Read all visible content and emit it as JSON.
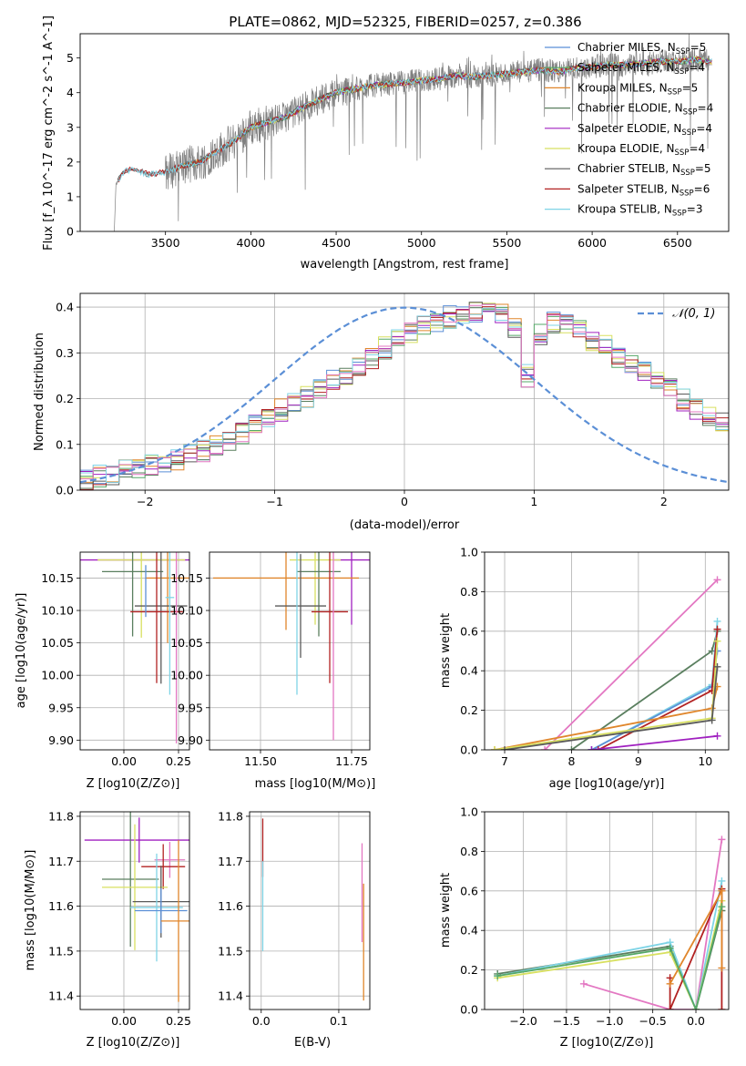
{
  "figure": {
    "title": "PLATE=0862, MJD=52325, FIBERID=0257, z=0.386"
  },
  "colors": {
    "Chabrier MILES": "#5b8fd6",
    "Salpeter MILES": "#55a868",
    "Kroupa MILES": "#e0862b",
    "Chabrier ELODIE": "#5a7f5f",
    "Salpeter ELODIE": "#a020c0",
    "Kroupa ELODIE": "#d8e060",
    "Chabrier STELIB": "#5a5a5a",
    "Salpeter STELIB": "#b22222",
    "Kroupa STELIB": "#7fd4e6",
    "pink": "#e377c2",
    "gauss": "#5b8fd6",
    "grid": "#b0b0b0",
    "spectrum": "#808080"
  },
  "chart_data": [
    {
      "type": "line",
      "name": "spectrum",
      "xlabel": "wavelength [Angstrom, rest frame]",
      "ylabel": "Flux [f_λ 10^-17 erg cm^-2 s^-1 A^-1]",
      "xlim": [
        3000,
        6800
      ],
      "ylim": [
        0,
        5.7
      ],
      "xticks": [
        3500,
        4000,
        4500,
        5000,
        5500,
        6000,
        6500
      ],
      "yticks": [
        0,
        1,
        2,
        3,
        4,
        5
      ],
      "grid": false,
      "legend_position": "right",
      "legend": [
        {
          "label": "Chabrier MILES, N",
          "sub": "SSP",
          "tail": "=5"
        },
        {
          "label": "Salpeter MILES, N",
          "sub": "SSP",
          "tail": "=4"
        },
        {
          "label": "Kroupa MILES, N",
          "sub": "SSP",
          "tail": "=5"
        },
        {
          "label": "Chabrier ELODIE, N",
          "sub": "SSP",
          "tail": "=4"
        },
        {
          "label": "Salpeter ELODIE, N",
          "sub": "SSP",
          "tail": "=4"
        },
        {
          "label": "Kroupa ELODIE, N",
          "sub": "SSP",
          "tail": "=4"
        },
        {
          "label": "Chabrier STELIB, N",
          "sub": "SSP",
          "tail": "=5"
        },
        {
          "label": "Salpeter STELIB, N",
          "sub": "SSP",
          "tail": "=6"
        },
        {
          "label": "Kroupa STELIB, N",
          "sub": "SSP",
          "tail": "=3"
        }
      ],
      "continuum": {
        "x": [
          3200,
          3250,
          3300,
          3400,
          3500,
          3600,
          3700,
          3800,
          3900,
          4000,
          4100,
          4200,
          4300,
          4400,
          4500,
          4600,
          4700,
          4800,
          4900,
          5000,
          5100,
          5200,
          5300,
          5400,
          5500,
          5600,
          5700,
          5800,
          5900,
          6000,
          6100,
          6200,
          6300,
          6400,
          6500,
          6600,
          6700
        ],
        "y": [
          1.25,
          1.7,
          1.8,
          1.65,
          1.7,
          1.9,
          2.0,
          2.3,
          2.6,
          3.0,
          3.15,
          3.3,
          3.55,
          3.8,
          4.0,
          4.1,
          4.2,
          4.25,
          4.3,
          4.35,
          4.4,
          4.5,
          4.45,
          4.5,
          4.55,
          4.6,
          4.65,
          4.6,
          4.7,
          4.75,
          4.8,
          4.8,
          4.85,
          4.9,
          4.9,
          4.95,
          4.9
        ]
      }
    },
    {
      "type": "line",
      "name": "residual-distribution",
      "xlabel": "(data-model)/error",
      "ylabel": "Normed distribution",
      "xlim": [
        -2.5,
        2.5
      ],
      "ylim": [
        0,
        0.43
      ],
      "xticks": [
        -2,
        -1,
        0,
        1,
        2
      ],
      "yticks": [
        0.0,
        0.1,
        0.2,
        0.3,
        0.4
      ],
      "grid": true,
      "legend": [
        "𝒩(0, 1)"
      ],
      "legend_position": "top-right",
      "bin_edges_start": -2.5,
      "bin_width": 0.1,
      "series_base": [
        0.025,
        0.03,
        0.035,
        0.042,
        0.05,
        0.055,
        0.06,
        0.067,
        0.075,
        0.085,
        0.098,
        0.108,
        0.125,
        0.14,
        0.158,
        0.175,
        0.19,
        0.205,
        0.222,
        0.238,
        0.252,
        0.272,
        0.288,
        0.31,
        0.33,
        0.345,
        0.358,
        0.368,
        0.378,
        0.385,
        0.392,
        0.395,
        0.385,
        0.35,
        0.25,
        0.34,
        0.365,
        0.36,
        0.352,
        0.33,
        0.318,
        0.292,
        0.28,
        0.258,
        0.24,
        0.222,
        0.198,
        0.18,
        0.162,
        0.145,
        0.127
      ],
      "gaussian": {
        "mu": 0,
        "sigma": 1,
        "label": "𝒩(0, 1)"
      }
    },
    {
      "type": "scatter",
      "name": "age-vs-Z",
      "xlabel": "Z [log10(Z/Z⊙)]",
      "ylabel": "age [log10(age/yr)]",
      "xlim": [
        -0.2,
        0.3
      ],
      "ylim": [
        9.885,
        10.19
      ],
      "xticks": [
        0.0,
        0.25
      ],
      "yticks": [
        9.9,
        9.95,
        10.0,
        10.05,
        10.1,
        10.15
      ],
      "grid": true,
      "points": [
        {
          "series": "Salpeter ELODIE",
          "x": 0.05,
          "y": 10.178,
          "xerr": 0.25,
          "yerr": 0.0
        },
        {
          "series": "Kroupa ELODIE",
          "x": 0.08,
          "y": 10.178,
          "xerr": 0.2,
          "yerr": 0.12
        },
        {
          "series": "Chabrier ELODIE",
          "x": 0.04,
          "y": 10.16,
          "xerr": 0.14,
          "yerr": 0.1
        },
        {
          "series": "Kroupa MILES",
          "x": 0.2,
          "y": 10.15,
          "xerr": 0.1,
          "yerr": 0.1
        },
        {
          "series": "Chabrier STELIB",
          "x": 0.17,
          "y": 10.107,
          "xerr": 0.12,
          "yerr": 0.12
        },
        {
          "series": "Salpeter STELIB",
          "x": 0.15,
          "y": 10.098,
          "xerr": 0.12,
          "yerr": 0.11
        },
        {
          "series": "Kroupa STELIB",
          "x": 0.21,
          "y": 10.12,
          "xerr": 0.02,
          "yerr": 0.15
        },
        {
          "series": "pink",
          "x": 0.24,
          "y": 10.05,
          "xerr": 0.0,
          "yerr": 0.155
        },
        {
          "series": "Chabrier MILES",
          "x": 0.1,
          "y": 10.13,
          "xerr": 0.0,
          "yerr": 0.04
        }
      ]
    },
    {
      "type": "scatter",
      "name": "age-vs-mass",
      "xlabel": "mass [log10(M/M⊙)]",
      "ylabel": "",
      "xlim": [
        11.36,
        11.8
      ],
      "ylim": [
        9.885,
        10.19
      ],
      "xticks": [
        11.5,
        11.75
      ],
      "yticks": [
        9.9,
        9.95,
        10.0,
        10.05,
        10.1,
        10.15
      ],
      "grid": true,
      "points": [
        {
          "series": "Salpeter ELODIE",
          "x": 11.75,
          "y": 10.178,
          "xerr": 0.05,
          "yerr": 0.1
        },
        {
          "series": "Kroupa ELODIE",
          "x": 11.65,
          "y": 10.178,
          "xerr": 0.07,
          "yerr": 0.1
        },
        {
          "series": "Chabrier ELODIE",
          "x": 11.66,
          "y": 10.16,
          "xerr": 0.06,
          "yerr": 0.1
        },
        {
          "series": "Kroupa MILES",
          "x": 11.57,
          "y": 10.15,
          "xerr": 0.2,
          "yerr": 0.08
        },
        {
          "series": "Chabrier STELIB",
          "x": 11.61,
          "y": 10.107,
          "xerr": 0.07,
          "yerr": 0.08
        },
        {
          "series": "Salpeter STELIB",
          "x": 11.69,
          "y": 10.098,
          "xerr": 0.05,
          "yerr": 0.11
        },
        {
          "series": "Kroupa STELIB",
          "x": 11.6,
          "y": 10.12,
          "xerr": 0.0,
          "yerr": 0.15
        },
        {
          "series": "pink",
          "x": 11.7,
          "y": 10.05,
          "xerr": 0.0,
          "yerr": 0.15
        }
      ]
    },
    {
      "type": "line",
      "name": "weight-vs-age",
      "xlabel": "age [log10(age/yr)]",
      "ylabel": "mass weight",
      "xlim": [
        6.7,
        10.35
      ],
      "ylim": [
        0,
        1
      ],
      "xticks": [
        7,
        8,
        9,
        10
      ],
      "yticks": [
        0.0,
        0.2,
        0.4,
        0.6,
        0.8,
        1.0
      ],
      "grid": true,
      "series": [
        {
          "name": "pink",
          "x": [
            7.6,
            10.18
          ],
          "y": [
            0.0,
            0.86
          ]
        },
        {
          "name": "Chabrier ELODIE",
          "x": [
            8.0,
            10.1,
            10.18
          ],
          "y": [
            0.0,
            0.5,
            0.6
          ]
        },
        {
          "name": "Kroupa STELIB",
          "x": [
            8.3,
            10.1,
            10.18
          ],
          "y": [
            0.0,
            0.33,
            0.65
          ]
        },
        {
          "name": "Chabrier MILES",
          "x": [
            8.3,
            10.1,
            10.18
          ],
          "y": [
            0.0,
            0.32,
            0.5
          ]
        },
        {
          "name": "Salpeter STELIB",
          "x": [
            8.4,
            10.1,
            10.18
          ],
          "y": [
            0.0,
            0.3,
            0.61
          ]
        },
        {
          "name": "Kroupa MILES",
          "x": [
            6.85,
            10.1,
            10.18
          ],
          "y": [
            0.0,
            0.21,
            0.32
          ]
        },
        {
          "name": "Kroupa ELODIE",
          "x": [
            6.85,
            10.1,
            10.18
          ],
          "y": [
            0.0,
            0.16,
            0.55
          ]
        },
        {
          "name": "Chabrier STELIB",
          "x": [
            7.0,
            10.1,
            10.18
          ],
          "y": [
            0.0,
            0.15,
            0.42
          ]
        },
        {
          "name": "Salpeter ELODIE",
          "x": [
            8.3,
            10.18
          ],
          "y": [
            0.0,
            0.07
          ]
        }
      ]
    },
    {
      "type": "scatter",
      "name": "mass-vs-Z",
      "xlabel": "Z [log10(Z/Z⊙)]",
      "ylabel": "mass [log10(M/M⊙)]",
      "xlim": [
        -0.2,
        0.3
      ],
      "ylim": [
        11.37,
        11.81
      ],
      "xticks": [
        0.0,
        0.25
      ],
      "yticks": [
        11.4,
        11.5,
        11.6,
        11.7,
        11.8
      ],
      "grid": true,
      "points": [
        {
          "series": "Salpeter ELODIE",
          "x": 0.07,
          "y": 11.747,
          "xerr": 0.25,
          "yerr": 0.05
        },
        {
          "series": "pink",
          "x": 0.21,
          "y": 11.703,
          "xerr": 0.07,
          "yerr": 0.04
        },
        {
          "series": "Salpeter STELIB",
          "x": 0.18,
          "y": 11.688,
          "xerr": 0.1,
          "yerr": 0.05
        },
        {
          "series": "Chabrier ELODIE",
          "x": 0.03,
          "y": 11.66,
          "xerr": 0.13,
          "yerr": 0.15
        },
        {
          "series": "Kroupa ELODIE",
          "x": 0.05,
          "y": 11.642,
          "xerr": 0.15,
          "yerr": 0.14
        },
        {
          "series": "Chabrier STELIB",
          "x": 0.17,
          "y": 11.61,
          "xerr": 0.13,
          "yerr": 0.08
        },
        {
          "series": "Kroupa STELIB",
          "x": 0.15,
          "y": 11.597,
          "xerr": 0.12,
          "yerr": 0.12
        },
        {
          "series": "Chabrier MILES",
          "x": 0.17,
          "y": 11.59,
          "xerr": 0.12,
          "yerr": 0.05
        },
        {
          "series": "Kroupa MILES",
          "x": 0.25,
          "y": 11.567,
          "xerr": 0.08,
          "yerr": 0.18
        }
      ]
    },
    {
      "type": "scatter",
      "name": "mass-vs-EBV",
      "xlabel": "E(B-V)",
      "ylabel": "",
      "xlim": [
        -0.015,
        0.14
      ],
      "ylim": [
        11.37,
        11.81
      ],
      "xticks": [
        0.0,
        0.1
      ],
      "yticks": [
        11.4,
        11.5,
        11.6,
        11.7,
        11.8
      ],
      "grid": true,
      "points": [
        {
          "series": "Salpeter STELIB",
          "x": 0.002,
          "y": 11.73,
          "xerr": 0.0,
          "yerr": 0.065
        },
        {
          "series": "Kroupa STELIB",
          "x": 0.002,
          "y": 11.6,
          "xerr": 0.0,
          "yerr": 0.1
        },
        {
          "series": "pink",
          "x": 0.13,
          "y": 11.63,
          "xerr": 0.0,
          "yerr": 0.11
        },
        {
          "series": "Kroupa MILES",
          "x": 0.132,
          "y": 11.52,
          "xerr": 0.0,
          "yerr": 0.13
        }
      ]
    },
    {
      "type": "line",
      "name": "weight-vs-Z",
      "xlabel": "Z [log10(Z/Z⊙)]",
      "ylabel": "mass weight",
      "xlim": [
        -2.45,
        0.38
      ],
      "ylim": [
        0,
        1
      ],
      "xticks": [
        -2.0,
        -1.5,
        -1.0,
        -0.5,
        0.0
      ],
      "yticks": [
        0.0,
        0.2,
        0.4,
        0.6,
        0.8,
        1.0
      ],
      "grid": true,
      "series": [
        {
          "name": "pink",
          "x": [
            -1.3,
            -0.3,
            0.0,
            0.3
          ],
          "y": [
            0.13,
            0.0,
            0.0,
            0.86
          ]
        },
        {
          "name": "Chabrier ELODIE",
          "x": [
            -2.3,
            -0.3,
            0.0,
            0.3
          ],
          "y": [
            0.18,
            0.32,
            0.0,
            0.5
          ]
        },
        {
          "name": "Kroupa STELIB",
          "x": [
            -2.3,
            -0.3,
            0.0,
            0.3
          ],
          "y": [
            0.17,
            0.34,
            0.0,
            0.65
          ]
        },
        {
          "name": "Kroupa ELODIE",
          "x": [
            -2.3,
            -0.3,
            0.0,
            0.3
          ],
          "y": [
            0.16,
            0.29,
            0.0,
            0.55
          ]
        },
        {
          "name": "Salpeter STELIB",
          "x": [
            -0.3,
            -0.3,
            0.3,
            0.3
          ],
          "y": [
            0.16,
            0.0,
            0.61,
            0.0
          ]
        },
        {
          "name": "Kroupa MILES",
          "x": [
            -0.3,
            0.3,
            0.3
          ],
          "y": [
            0.13,
            0.6,
            0.21
          ]
        },
        {
          "name": "Salpeter MILES",
          "x": [
            -2.3,
            -0.3,
            0.0,
            0.3
          ],
          "y": [
            0.17,
            0.31,
            0.0,
            0.52
          ]
        }
      ]
    }
  ]
}
